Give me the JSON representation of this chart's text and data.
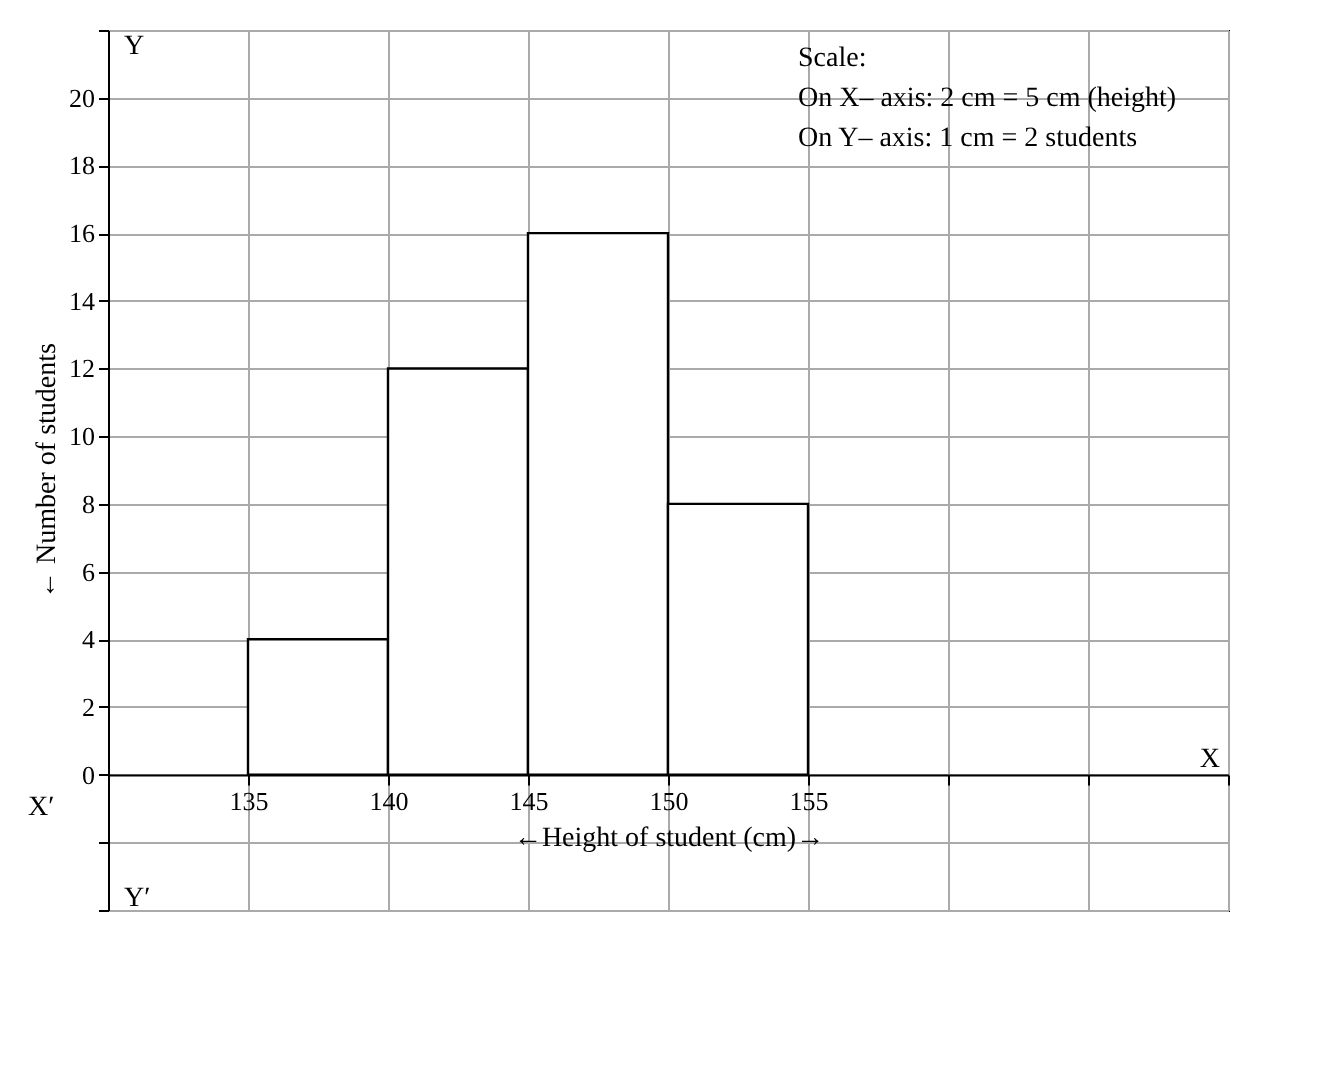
{
  "chart_data": {
    "type": "histogram",
    "xlabel": "←Height of student (cm)→",
    "ylabel": "← Number of students",
    "bins": [
      135,
      140,
      145,
      150,
      155
    ],
    "values": [
      4,
      12,
      16,
      8
    ],
    "color": "#ffffff",
    "xlim": [
      130,
      170
    ],
    "xticks": [
      {
        "value": 130,
        "label": null
      },
      135,
      140,
      145,
      150,
      155,
      {
        "value": 160,
        "label": null
      },
      {
        "value": 165,
        "label": null
      },
      {
        "value": 170,
        "label": null
      }
    ],
    "ylim": [
      -4,
      22
    ],
    "yticks": [
      {
        "value": -4,
        "label": null
      },
      {
        "value": -2,
        "label": null
      },
      0,
      2,
      4,
      6,
      8,
      10,
      12,
      14,
      16,
      18,
      20,
      {
        "value": 22,
        "label": null
      }
    ],
    "grid": true,
    "annotations": [
      "Y",
      "Y′",
      "X",
      "X′",
      "Scale:",
      "On X– axis: 2 cm = 5 cm (height)",
      "On Y– axis: 1 cm = 2 students"
    ]
  }
}
